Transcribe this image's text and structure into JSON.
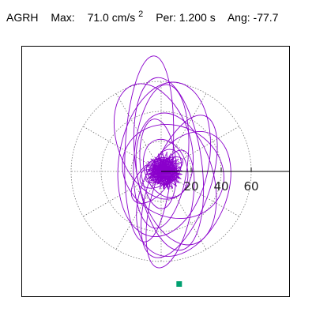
{
  "header": {
    "station": "AGRH",
    "max_label": "Max:",
    "max_value": "71.0 cm/s",
    "max_exp": "2",
    "period_label": "Per:",
    "period_value": "1.200 s",
    "angle_label": "Ang:",
    "angle_value": "-77.7"
  },
  "colors": {
    "trace": "#8a00cc",
    "end_marker": "#00a070",
    "grid": "#777777",
    "axis": "#000000",
    "frame": "#000000"
  },
  "chart_data": {
    "type": "scatter",
    "title": "AGRH  Max: 71.0 cm/s2  Per: 1.200 s  Ang: -77.7",
    "polar": true,
    "rings": [
      20,
      40,
      60
    ],
    "spokes_deg": [
      0,
      30,
      60,
      90,
      120,
      150,
      180,
      210,
      240,
      270,
      300,
      330
    ],
    "tick_labels": [
      "20",
      "40",
      "60"
    ],
    "grid": true,
    "particle_motion_loops": [
      {
        "cx": 0,
        "cy": 0,
        "rx": 10,
        "ry": 8,
        "rot": 20
      },
      {
        "cx": 2,
        "cy": 1,
        "rx": 14,
        "ry": 6,
        "rot": -30
      },
      {
        "cx": -3,
        "cy": -2,
        "rx": 8,
        "ry": 12,
        "rot": 60
      },
      {
        "cx": 4,
        "cy": 3,
        "rx": 12,
        "ry": 9,
        "rot": 110
      },
      {
        "cx": 0,
        "cy": 10,
        "rx": 18,
        "ry": 48,
        "rot": 5
      },
      {
        "cx": 5,
        "cy": 5,
        "rx": 22,
        "ry": 58,
        "rot": -8
      },
      {
        "cx": -8,
        "cy": 15,
        "rx": 16,
        "ry": 62,
        "rot": 3
      },
      {
        "cx": 10,
        "cy": -5,
        "rx": 25,
        "ry": 45,
        "rot": -15
      },
      {
        "cx": 2,
        "cy": 8,
        "rx": 30,
        "ry": 52,
        "rot": 10
      },
      {
        "cx": 12,
        "cy": -10,
        "rx": 20,
        "ry": 50,
        "rot": 20
      },
      {
        "cx": -5,
        "cy": 20,
        "rx": 24,
        "ry": 40,
        "rot": -20
      },
      {
        "cx": 15,
        "cy": -15,
        "rx": 28,
        "ry": 44,
        "rot": 25
      },
      {
        "cx": 8,
        "cy": 0,
        "rx": 35,
        "ry": 30,
        "rot": 30
      },
      {
        "cx": -2,
        "cy": 5,
        "rx": 12,
        "ry": 30,
        "rot": -5
      },
      {
        "cx": 6,
        "cy": -25,
        "rx": 14,
        "ry": 40,
        "rot": 12
      },
      {
        "cx": 3,
        "cy": 2,
        "rx": 20,
        "ry": 14,
        "rot": 70
      },
      {
        "cx": -6,
        "cy": -6,
        "rx": 10,
        "ry": 18,
        "rot": 40
      }
    ],
    "end_point": {
      "x": 12,
      "y": -75
    }
  }
}
